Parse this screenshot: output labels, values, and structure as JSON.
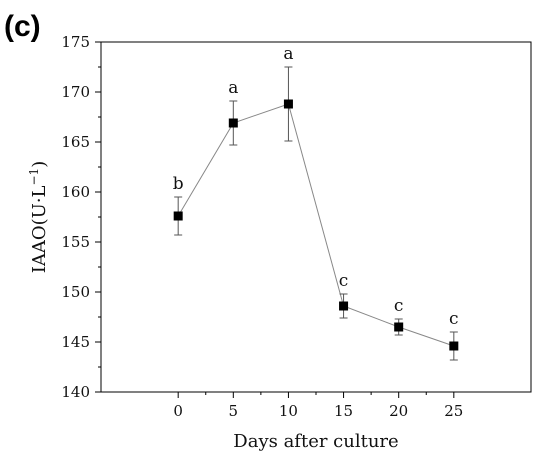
{
  "panel_label": "(c)",
  "chart_data": {
    "type": "line",
    "title": "",
    "xlabel": "Days after culture",
    "ylabel": "IAAO(U·L",
    "ylabel_superscript": "−1",
    "ylabel_close": ")",
    "xlim": [
      -7,
      32
    ],
    "ylim": [
      140,
      175
    ],
    "xticks": [
      0,
      5,
      10,
      15,
      20,
      25
    ],
    "yticks": [
      140,
      145,
      150,
      155,
      160,
      165,
      170,
      175
    ],
    "grid": false,
    "series": [
      {
        "x": [
          0,
          5,
          10,
          15,
          20,
          25
        ],
        "y": [
          157.6,
          166.9,
          168.8,
          148.6,
          146.5,
          144.6
        ],
        "error": [
          1.9,
          2.2,
          3.7,
          1.2,
          0.8,
          1.4
        ],
        "labels": [
          "b",
          "a",
          "a",
          "c",
          "c",
          "c"
        ]
      }
    ],
    "colors": {
      "line": "#888888",
      "marker": "#000000",
      "axis": "#000000",
      "error": "#555555"
    }
  }
}
